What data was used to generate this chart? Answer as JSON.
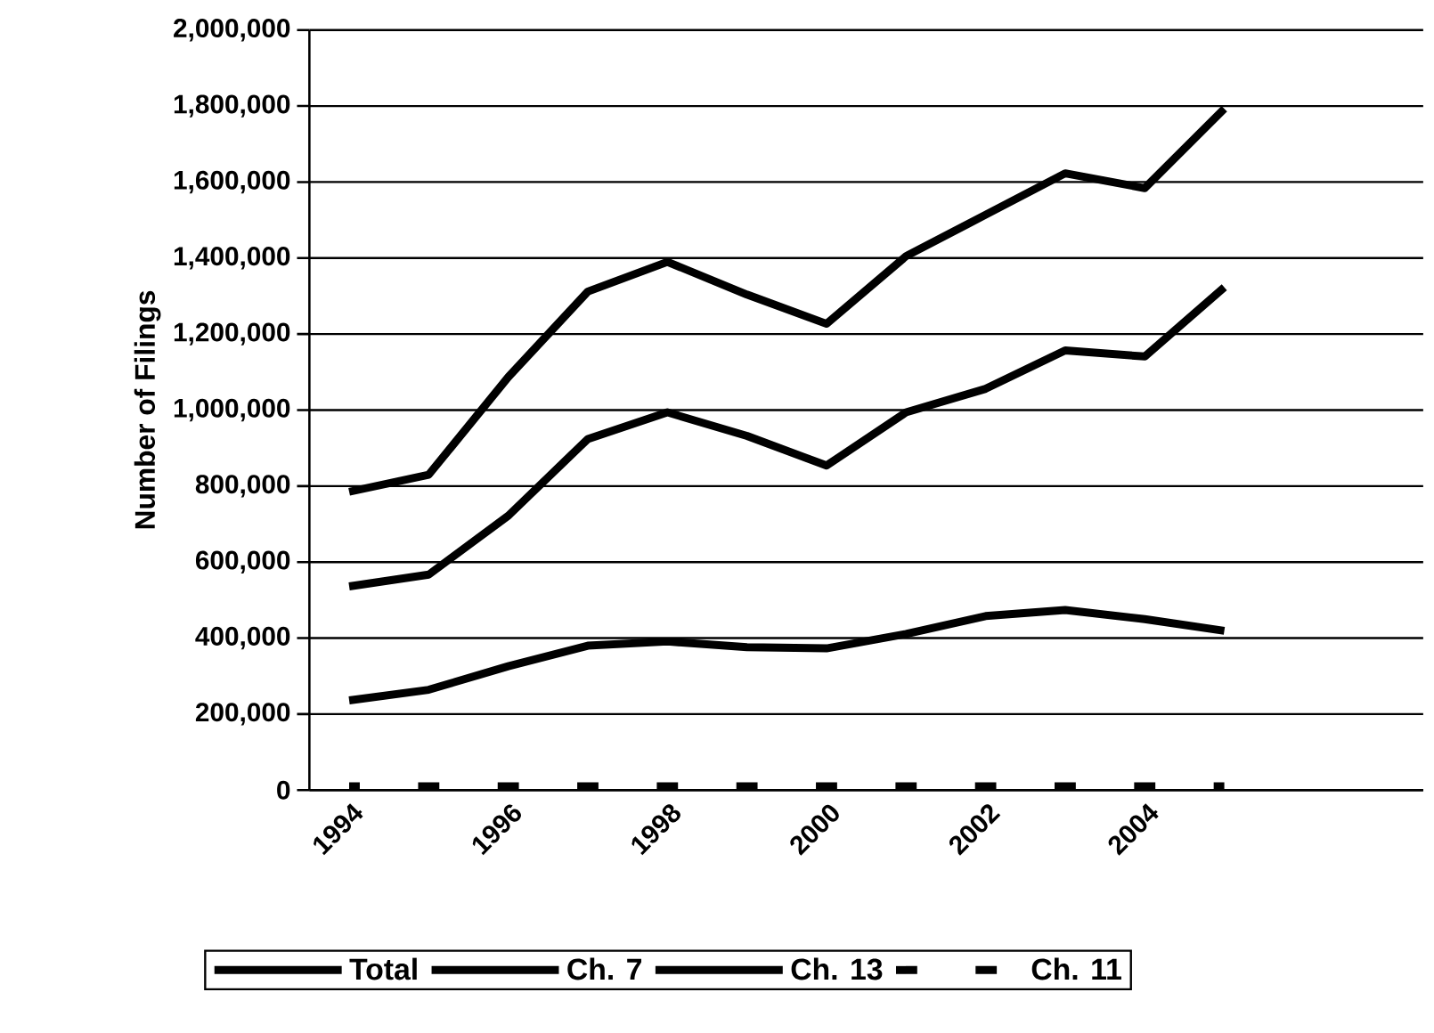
{
  "chart_data": {
    "type": "line",
    "ylabel": "Number of Filings",
    "categories": [
      "1994",
      null,
      "1996",
      null,
      "1998",
      null,
      "2000",
      null,
      "2002",
      null,
      "2004",
      null,
      null,
      null
    ],
    "series": [
      {
        "name": "Total",
        "color": "#000000",
        "values": [
          785000,
          830000,
          1087000,
          1312000,
          1390000,
          1304000,
          1227000,
          1405000,
          1514000,
          1623000,
          1584000,
          1793000,
          null,
          null
        ]
      },
      {
        "name": "Ch. 7",
        "color": "#000000",
        "values": [
          536000,
          567000,
          722000,
          924000,
          994000,
          932000,
          854000,
          994000,
          1056000,
          1157000,
          1141000,
          1323000,
          null,
          null
        ]
      },
      {
        "name": "Ch. 13",
        "color": "#000000",
        "values": [
          236000,
          264000,
          326000,
          380000,
          391000,
          376000,
          373000,
          411000,
          458000,
          474000,
          450000,
          419000,
          null,
          null
        ]
      },
      {
        "name": "Ch. 11",
        "color": "#000000",
        "line_style": "dashed",
        "values": [
          10000,
          10000,
          10000,
          10000,
          10000,
          10000,
          10000,
          10000,
          10000,
          10000,
          10000,
          10000,
          null,
          null
        ]
      }
    ],
    "ylim": [
      0,
      2000000
    ],
    "yticks": [
      {
        "value": 0,
        "label": "0"
      },
      {
        "value": 200000,
        "label": "200,000"
      },
      {
        "value": 400000,
        "label": "400,000"
      },
      {
        "value": 600000,
        "label": "600,000"
      },
      {
        "value": 800000,
        "label": "800,000"
      },
      {
        "value": 1000000,
        "label": "1,000,000"
      },
      {
        "value": 1200000,
        "label": "1,200,000"
      },
      {
        "value": 1400000,
        "label": "1,400,000"
      },
      {
        "value": 1600000,
        "label": "1,600,000"
      },
      {
        "value": 1800000,
        "label": "1,800,000"
      },
      {
        "value": 2000000,
        "label": "2,000,000"
      }
    ],
    "grid": "y",
    "legend": "bottom",
    "marker": "none",
    "line_style": "solid"
  }
}
